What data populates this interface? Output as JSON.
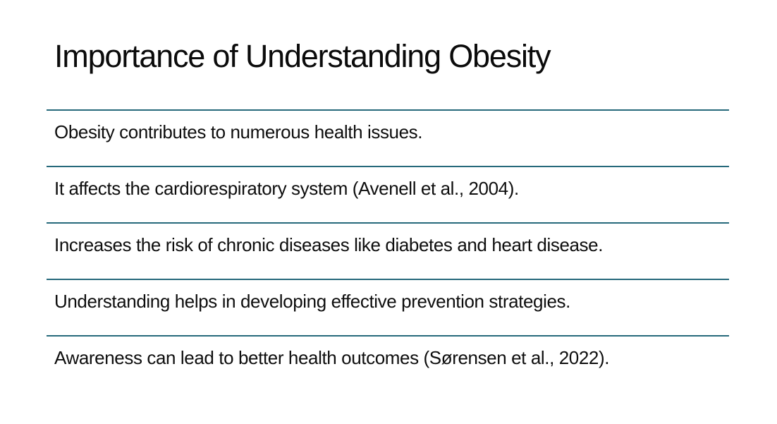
{
  "slide": {
    "title": "Importance of Understanding Obesity",
    "items": [
      "Obesity contributes to numerous health issues.",
      "It affects the cardiorespiratory system (Avenell et al., 2004).",
      "Increases the risk of chronic diseases like diabetes and heart disease.",
      "Understanding helps in developing effective prevention strategies.",
      "Awareness can lead to better health outcomes (Sørensen et al., 2022)."
    ],
    "colors": {
      "divider": "#26697B",
      "title_text": "#0b0b0b",
      "body_text": "#0e0e0e",
      "background": "#ffffff"
    }
  }
}
